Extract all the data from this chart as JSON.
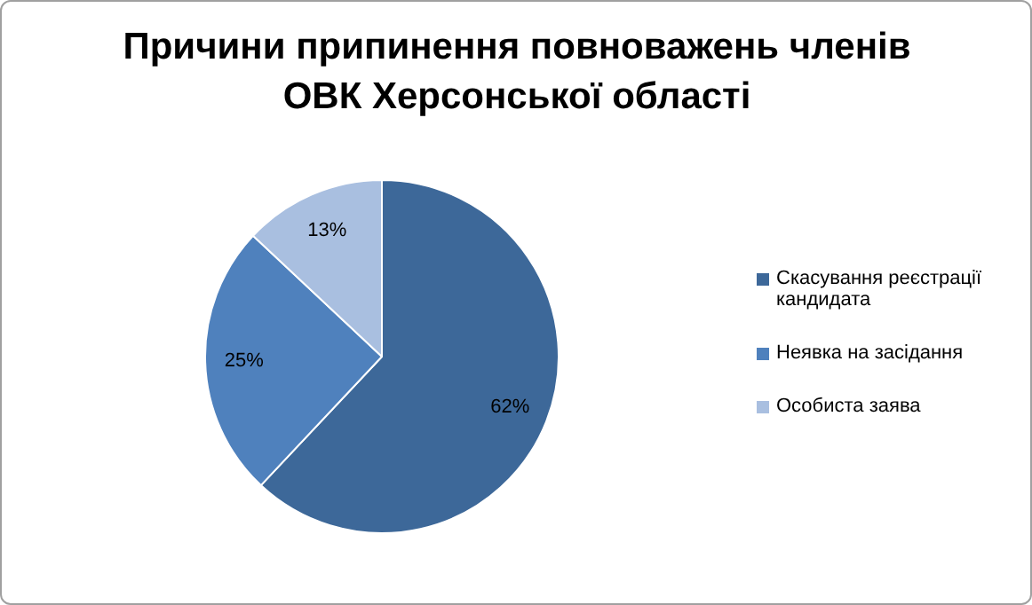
{
  "chart_data": {
    "type": "pie",
    "title": "Причини припинення повноважень членів ОВК Херсонської області",
    "categories": [
      "Скасування реєстрації кандидата",
      "Неявка на засідання",
      "Особиста заява"
    ],
    "values": [
      62,
      25,
      13
    ],
    "colors": [
      "#3d6899",
      "#4f81bd",
      "#a9bfe0"
    ],
    "value_labels": [
      "62%",
      "25%",
      "13%"
    ],
    "legend": "right"
  }
}
